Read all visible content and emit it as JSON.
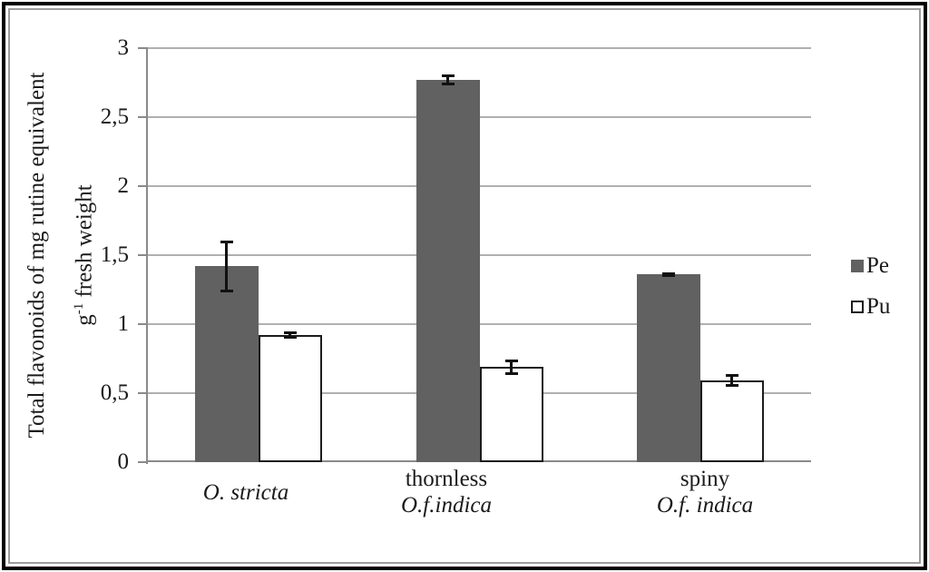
{
  "figure": {
    "background": "#ffffff",
    "outer_border_color": "#000000",
    "inner_border_color": "#9c9c9c"
  },
  "chart_data": {
    "type": "bar",
    "title": "",
    "ylabel_line1": "Total flavonoids of mg rutine equivalent",
    "ylabel_line2_base": "g",
    "ylabel_line2_sup": "-1",
    "ylabel_line2_rest": " fresh weight",
    "categories": [
      {
        "lines": [
          {
            "text": "O. stricta",
            "italic": true
          }
        ]
      },
      {
        "lines": [
          {
            "text": "thornless",
            "italic": false
          },
          {
            "text": "O.f.indica",
            "italic": true
          }
        ]
      },
      {
        "lines": [
          {
            "text": "spiny",
            "italic": false
          },
          {
            "text": "O.f. indica",
            "italic": true
          }
        ]
      }
    ],
    "series": [
      {
        "name": "Pe",
        "fill": "#616161",
        "outline": null,
        "values": [
          1.42,
          2.77,
          1.36
        ],
        "errors": [
          0.18,
          0.03,
          0.01
        ]
      },
      {
        "name": "Pu",
        "fill": "#ffffff",
        "outline": "#1c1c1c",
        "values": [
          0.92,
          0.69,
          0.59
        ],
        "errors": [
          0.02,
          0.05,
          0.04
        ]
      }
    ],
    "ylim": [
      0,
      3
    ],
    "yticks": [
      {
        "label": "0",
        "value": 0
      },
      {
        "label": "0,5",
        "value": 0.5
      },
      {
        "label": "1",
        "value": 1
      },
      {
        "label": "1,5",
        "value": 1.5
      },
      {
        "label": "2",
        "value": 2
      },
      {
        "label": "2,5",
        "value": 2.5
      },
      {
        "label": "3",
        "value": 3
      }
    ],
    "decimal_separator": ",",
    "grid": "horizontal",
    "legend_position": "right",
    "error_bars": true,
    "colors": {
      "bar_fill": "#616161",
      "gridline": "#b0b0b0",
      "axis": "#8a8a8a",
      "error_bar": "#111111",
      "text": "#1a1a1a"
    }
  }
}
